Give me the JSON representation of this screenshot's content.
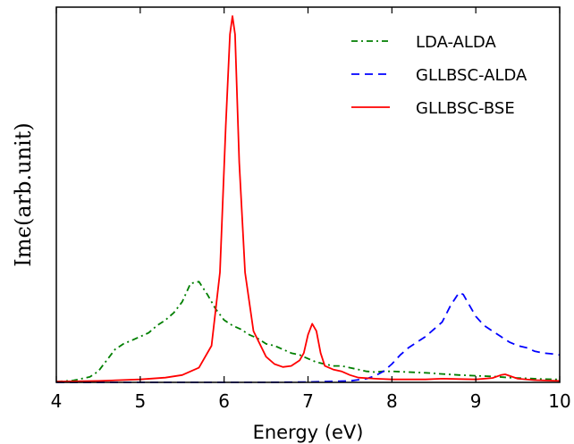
{
  "chart_data": {
    "type": "line",
    "title": "",
    "xlabel": "Energy (eV)",
    "ylabel": "Imϵ(arb.unit)",
    "xlim": [
      4,
      10
    ],
    "ylim": [
      0,
      1.0
    ],
    "xticks": [
      "4",
      "5",
      "6",
      "7",
      "8",
      "9",
      "10"
    ],
    "yticks_visible": false,
    "grid": false,
    "legend_position": "top-right",
    "series": [
      {
        "name": "LDA-ALDA",
        "color": "#007f00",
        "style": "dashdot",
        "x": [
          4.0,
          4.2,
          4.4,
          4.5,
          4.6,
          4.7,
          4.8,
          4.9,
          5.0,
          5.1,
          5.2,
          5.3,
          5.4,
          5.5,
          5.6,
          5.7,
          5.8,
          5.9,
          6.0,
          6.1,
          6.2,
          6.3,
          6.4,
          6.5,
          6.6,
          6.7,
          6.8,
          6.9,
          7.0,
          7.1,
          7.2,
          7.3,
          7.4,
          7.5,
          7.6,
          7.7,
          7.8,
          7.9,
          8.0,
          8.2,
          8.4,
          8.6,
          8.8,
          9.0,
          9.2,
          9.4,
          9.6,
          9.8,
          10.0
        ],
        "values": [
          0.002,
          0.005,
          0.015,
          0.03,
          0.06,
          0.09,
          0.105,
          0.115,
          0.125,
          0.135,
          0.155,
          0.17,
          0.19,
          0.22,
          0.27,
          0.275,
          0.24,
          0.2,
          0.17,
          0.155,
          0.145,
          0.13,
          0.12,
          0.105,
          0.1,
          0.09,
          0.08,
          0.075,
          0.065,
          0.055,
          0.05,
          0.045,
          0.045,
          0.04,
          0.035,
          0.03,
          0.028,
          0.03,
          0.03,
          0.028,
          0.026,
          0.023,
          0.02,
          0.018,
          0.016,
          0.013,
          0.011,
          0.009,
          0.008
        ]
      },
      {
        "name": "GLLBSC-ALDA",
        "color": "#0000ff",
        "style": "dashed",
        "x": [
          4.0,
          6.5,
          7.0,
          7.5,
          7.7,
          7.8,
          7.9,
          8.0,
          8.1,
          8.2,
          8.3,
          8.4,
          8.5,
          8.6,
          8.7,
          8.8,
          8.85,
          8.9,
          9.0,
          9.1,
          9.2,
          9.3,
          9.4,
          9.5,
          9.6,
          9.7,
          9.8,
          9.9,
          10.0
        ],
        "values": [
          0.0,
          0.0,
          0.001,
          0.004,
          0.01,
          0.018,
          0.03,
          0.05,
          0.075,
          0.095,
          0.11,
          0.125,
          0.145,
          0.165,
          0.21,
          0.245,
          0.24,
          0.22,
          0.18,
          0.155,
          0.14,
          0.125,
          0.11,
          0.1,
          0.095,
          0.085,
          0.08,
          0.078,
          0.075
        ]
      },
      {
        "name": "GLLBSC-BSE",
        "color": "#ff0000",
        "style": "solid",
        "x": [
          4.0,
          4.5,
          5.0,
          5.3,
          5.5,
          5.7,
          5.85,
          5.95,
          6.02,
          6.07,
          6.1,
          6.13,
          6.18,
          6.25,
          6.35,
          6.5,
          6.6,
          6.7,
          6.8,
          6.9,
          6.95,
          7.0,
          7.05,
          7.1,
          7.15,
          7.2,
          7.3,
          7.4,
          7.5,
          7.6,
          7.8,
          8.0,
          8.4,
          8.6,
          8.8,
          9.0,
          9.2,
          9.3,
          9.35,
          9.4,
          9.5,
          9.7,
          10.0
        ],
        "values": [
          0.002,
          0.004,
          0.008,
          0.013,
          0.02,
          0.04,
          0.1,
          0.3,
          0.7,
          0.95,
          1.0,
          0.95,
          0.6,
          0.3,
          0.14,
          0.07,
          0.05,
          0.042,
          0.045,
          0.06,
          0.08,
          0.13,
          0.16,
          0.14,
          0.08,
          0.045,
          0.035,
          0.03,
          0.02,
          0.013,
          0.01,
          0.008,
          0.008,
          0.01,
          0.009,
          0.008,
          0.012,
          0.02,
          0.022,
          0.018,
          0.01,
          0.006,
          0.004
        ]
      }
    ]
  }
}
